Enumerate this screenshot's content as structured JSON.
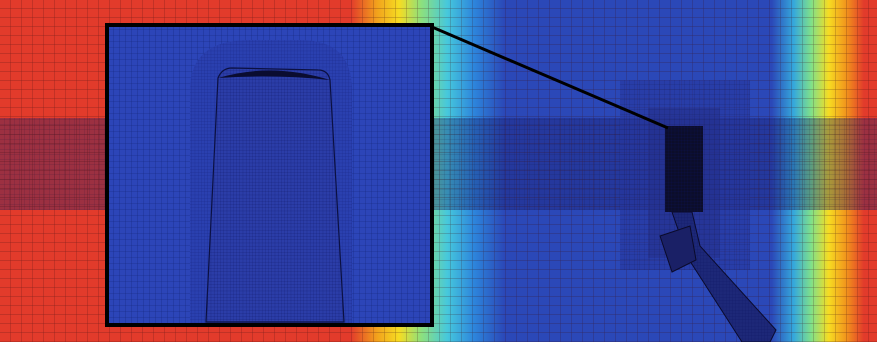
{
  "image": {
    "kind": "cfd-mesh-contour",
    "colormap": [
      "#e03a2a",
      "#f07a1a",
      "#f6d21a",
      "#86e07a",
      "#42c4d8",
      "#2a7ad8",
      "#2a3fb0"
    ],
    "mesh_color": "#0a0a2a",
    "inset_border_color": "#000000",
    "background_blue": "#2b44b6",
    "dark_band_blue": "#22339a"
  }
}
